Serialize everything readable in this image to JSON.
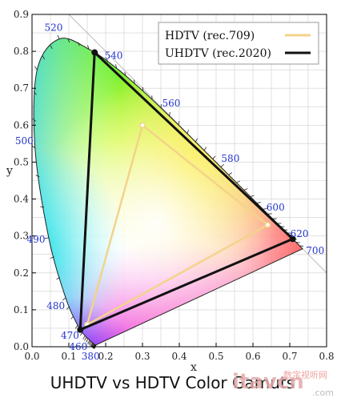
{
  "chart_data": {
    "type": "line",
    "title": "UHDTV vs HDTV Color Gamuts",
    "xlabel": "x",
    "ylabel": "y",
    "xlim": [
      0.0,
      0.8
    ],
    "ylim": [
      0.0,
      0.9
    ],
    "xticks": [
      "0.0",
      "0.1",
      "0.2",
      "0.3",
      "0.4",
      "0.5",
      "0.6",
      "0.7",
      "0.8"
    ],
    "yticks": [
      "0.0",
      "0.1",
      "0.2",
      "0.3",
      "0.4",
      "0.5",
      "0.6",
      "0.7",
      "0.8",
      "0.9"
    ],
    "grid": true,
    "legend_position": "top-right",
    "series": [
      {
        "name": "HDTV (rec.709)",
        "color": "#f3d38a",
        "points": [
          [
            0.64,
            0.33
          ],
          [
            0.3,
            0.6
          ],
          [
            0.15,
            0.06
          ],
          [
            0.64,
            0.33
          ]
        ]
      },
      {
        "name": "UHDTV (rec.2020)",
        "color": "#111111",
        "points": [
          [
            0.708,
            0.292
          ],
          [
            0.17,
            0.797
          ],
          [
            0.131,
            0.046
          ],
          [
            0.708,
            0.292
          ]
        ]
      }
    ],
    "spectral_locus": [
      [
        0.1741,
        0.005
      ],
      [
        0.1738,
        0.0049
      ],
      [
        0.173,
        0.0048
      ],
      [
        0.1714,
        0.0051
      ],
      [
        0.1689,
        0.0069
      ],
      [
        0.1644,
        0.0109
      ],
      [
        0.1566,
        0.0177
      ],
      [
        0.144,
        0.0297
      ],
      [
        0.1241,
        0.0578
      ],
      [
        0.0913,
        0.1327
      ],
      [
        0.0454,
        0.295
      ],
      [
        0.0082,
        0.5384
      ],
      [
        0.0139,
        0.7502
      ],
      [
        0.0743,
        0.8338
      ],
      [
        0.1547,
        0.8059
      ],
      [
        0.2296,
        0.7543
      ],
      [
        0.3016,
        0.6923
      ],
      [
        0.3731,
        0.6245
      ],
      [
        0.4441,
        0.5547
      ],
      [
        0.5125,
        0.4866
      ],
      [
        0.5752,
        0.4242
      ],
      [
        0.627,
        0.3725
      ],
      [
        0.6658,
        0.334
      ],
      [
        0.6915,
        0.3083
      ],
      [
        0.7079,
        0.292
      ],
      [
        0.7347,
        0.2653
      ]
    ],
    "wavelength_labels": [
      {
        "text": "380",
        "x": 0.1741,
        "y": 0.005
      },
      {
        "text": "460",
        "x": 0.144,
        "y": 0.0297
      },
      {
        "text": "470",
        "x": 0.1241,
        "y": 0.0578
      },
      {
        "text": "480",
        "x": 0.0913,
        "y": 0.1327
      },
      {
        "text": "490",
        "x": 0.0454,
        "y": 0.295
      },
      {
        "text": "500",
        "x": 0.0082,
        "y": 0.5384
      },
      {
        "text": "520",
        "x": 0.0743,
        "y": 0.8338
      },
      {
        "text": "540",
        "x": 0.2296,
        "y": 0.7543
      },
      {
        "text": "560",
        "x": 0.3731,
        "y": 0.6245
      },
      {
        "text": "580",
        "x": 0.5125,
        "y": 0.4866
      },
      {
        "text": "600",
        "x": 0.627,
        "y": 0.3725
      },
      {
        "text": "620",
        "x": 0.6915,
        "y": 0.3083
      },
      {
        "text": "700",
        "x": 0.7347,
        "y": 0.2653
      }
    ]
  },
  "caption": "UHDTV vs HDTV Color Gamuts",
  "watermark": {
    "main": "itavcn",
    "sub": "数字视听网",
    "domain": ".com"
  },
  "colors": {
    "wavelength_label": "#2233cc",
    "grid": "#cfcfcf",
    "axis": "#000000"
  }
}
